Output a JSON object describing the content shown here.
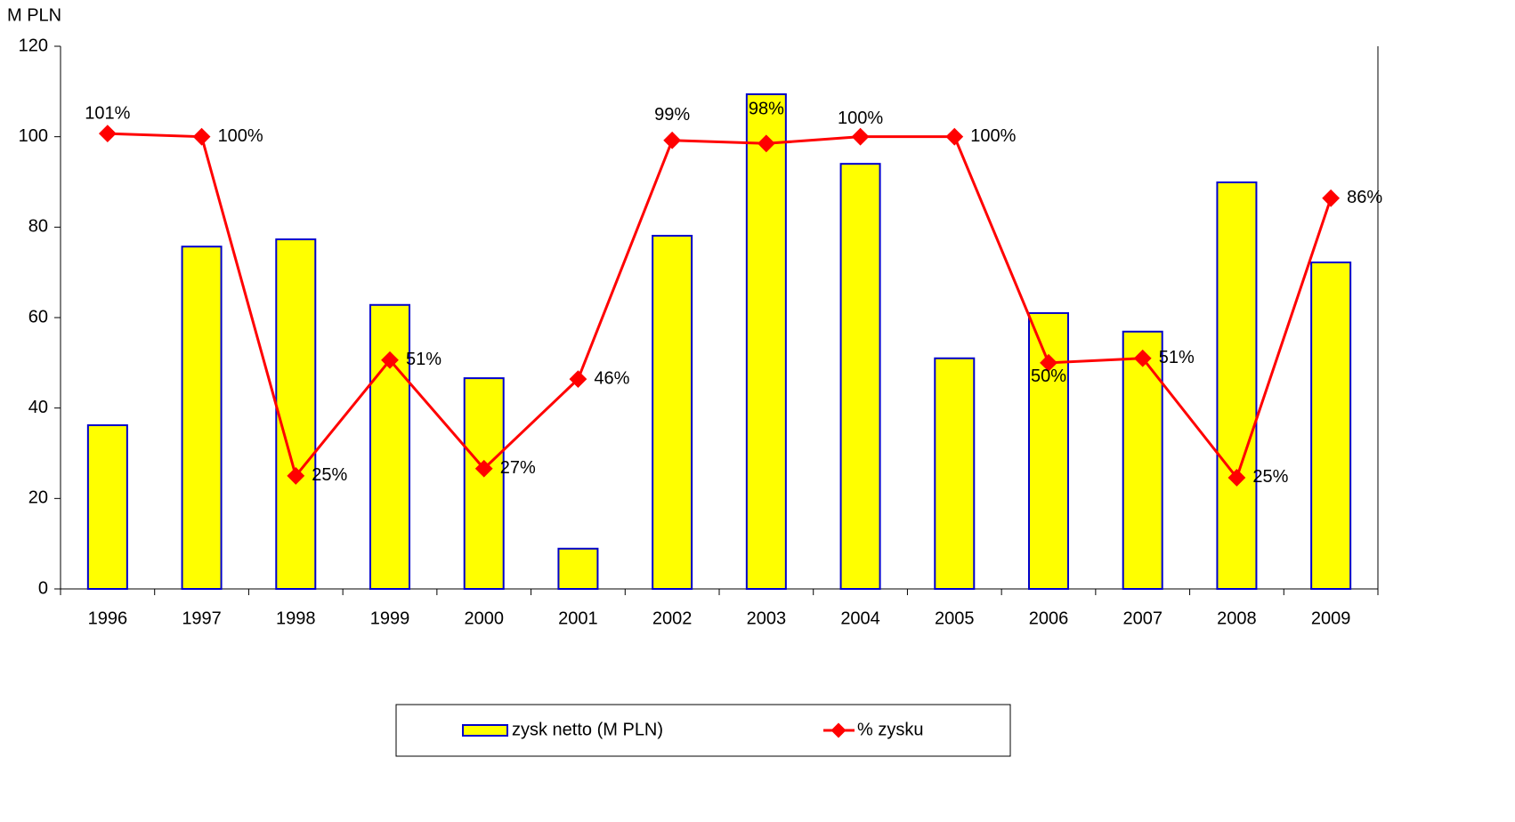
{
  "chart_data": {
    "type": "bar_line",
    "y_label": "M PLN",
    "categories": [
      "1996",
      "1997",
      "1998",
      "1999",
      "2000",
      "2001",
      "2002",
      "2003",
      "2004",
      "2005",
      "2006",
      "2007",
      "2008",
      "2009"
    ],
    "series": [
      {
        "name": "zysk netto (M PLN)",
        "type": "bar",
        "color": "#ffff00",
        "edge_color": "#0000cc",
        "values": [
          36.2,
          75.7,
          77.3,
          62.8,
          46.6,
          8.9,
          78.1,
          109.4,
          94.0,
          51.0,
          61.0,
          56.9,
          89.9,
          72.2
        ]
      },
      {
        "name": "% zysku",
        "type": "line",
        "color": "#ff0000",
        "values": [
          100.7,
          100,
          25,
          50.6,
          26.6,
          46.4,
          99.2,
          98.5,
          100,
          100,
          50,
          51,
          24.6,
          86.4
        ],
        "value_labels": [
          "101%",
          "100%",
          "25%",
          "51%",
          "27%",
          "46%",
          "99%",
          "98%",
          "100%",
          "100%",
          "50%",
          "51%",
          "25%",
          "86%"
        ]
      }
    ],
    "ylim": [
      0,
      120
    ],
    "yticks": [
      0,
      20,
      40,
      60,
      80,
      100,
      120
    ]
  }
}
